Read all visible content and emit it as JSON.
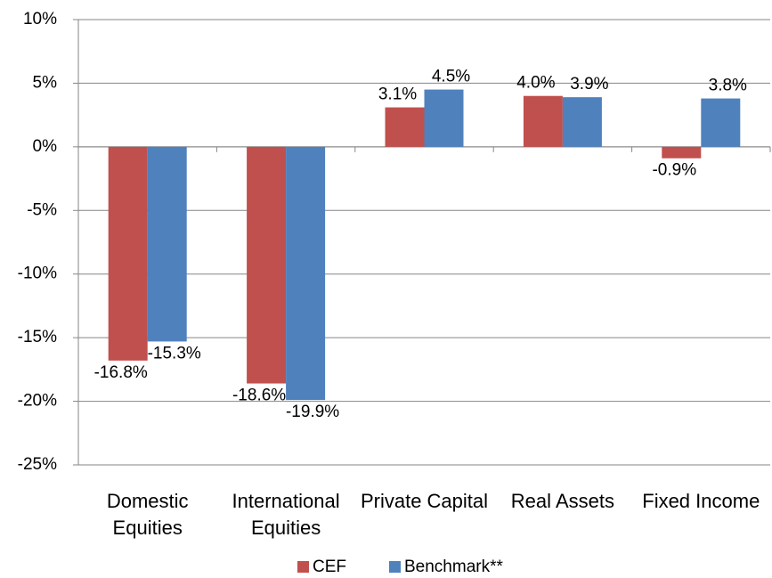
{
  "chart_data": {
    "type": "bar",
    "categories": [
      "Domestic Equities",
      "International Equities",
      "Private Capital",
      "Real Assets",
      "Fixed Income"
    ],
    "series": [
      {
        "name": "CEF",
        "color": "#c0504d",
        "values": [
          -16.8,
          -18.6,
          3.1,
          4.0,
          -0.9
        ],
        "value_labels": [
          "-16.8%",
          "-18.6%",
          "3.1%",
          "4.0%",
          "-0.9%"
        ]
      },
      {
        "name": "Benchmark**",
        "color": "#4f81bd",
        "values": [
          -15.3,
          -19.9,
          4.5,
          3.9,
          3.8
        ],
        "value_labels": [
          "-15.3%",
          "-19.9%",
          "4.5%",
          "3.9%",
          "3.8%"
        ]
      }
    ],
    "ylim": [
      -25,
      10
    ],
    "yticks": [
      {
        "value": -25,
        "label": "-25%"
      },
      {
        "value": -20,
        "label": "-20%"
      },
      {
        "value": -15,
        "label": "-15%"
      },
      {
        "value": -10,
        "label": "-10%"
      },
      {
        "value": -5,
        "label": "-5%"
      },
      {
        "value": 0,
        "label": "0%"
      },
      {
        "value": 5,
        "label": "5%"
      },
      {
        "value": 10,
        "label": "10%"
      }
    ],
    "grid": true,
    "legend": "bottom"
  }
}
